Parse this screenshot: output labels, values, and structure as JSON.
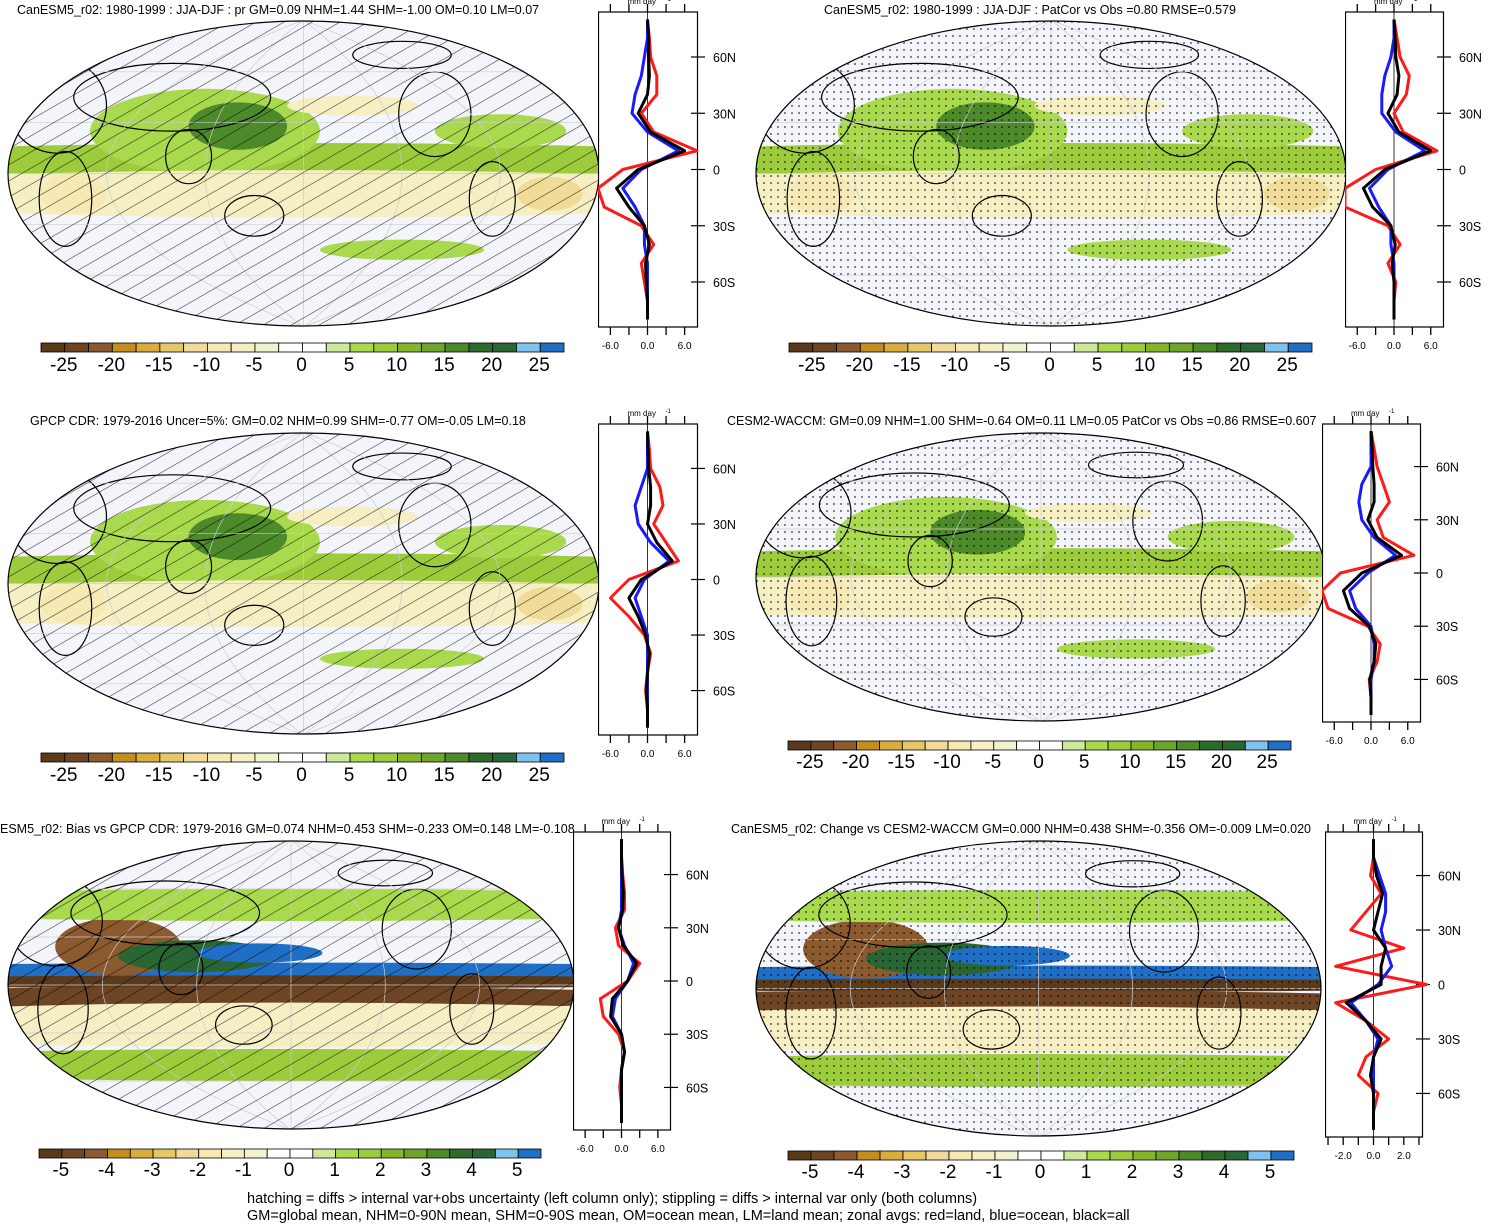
{
  "footer": {
    "line1": "hatching = diffs > internal var+obs uncertainty (left column only); stippling = diffs > internal var only (both columns)",
    "line2": "GM=global mean, NHM=0-90N mean, SHM=0-90S mean, OM=ocean mean, LM=land mean; zonal avgs: red=land, blue=ocean, black=all"
  },
  "colors": {
    "land": "#ff1a1a",
    "ocean": "#1a1aff",
    "all": "#000000",
    "palette": [
      "#5b3a1c",
      "#6e4524",
      "#8c5a2f",
      "#c48e1e",
      "#d9ac3e",
      "#e5c766",
      "#f0dc98",
      "#f6e9b4",
      "#f7efc4",
      "#f1f2cf",
      "#ffffff",
      "#ffffff",
      "#cfe99a",
      "#a9d94d",
      "#9ccb3c",
      "#85b52b",
      "#6fa42a",
      "#4c8a2a",
      "#2c6b2c",
      "#2a6634",
      "#7ec3ee",
      "#1f6fc6"
    ]
  },
  "chart_data": [
    {
      "type": "map+line",
      "id": "p1",
      "title": "CanESM5_r02: 1980-1999 : JJA-DJF : pr GM=0.09 NHM=1.44 SHM=-1.00 OM=0.10 LM=0.07",
      "units": "mm day-1",
      "overlay": "hatch",
      "colorbar_labels": [
        "-25",
        "-20",
        "-15",
        "-10",
        "-5",
        "0",
        "5",
        "10",
        "15",
        "20",
        "25"
      ],
      "xticks": [
        "-6.0",
        "0.0",
        "6.0"
      ],
      "xlim": [
        -8,
        8
      ],
      "lat_labels": [
        "60N",
        "30N",
        "0",
        "30S",
        "60S"
      ],
      "lat": [
        -80,
        -70,
        -60,
        -50,
        -40,
        -30,
        -20,
        -10,
        0,
        10,
        20,
        30,
        40,
        50,
        60,
        70,
        80
      ],
      "land": [
        0,
        0,
        -0.5,
        -1,
        1,
        -1,
        -7,
        -8,
        -4,
        8,
        1,
        -1,
        1.5,
        1.5,
        0.5,
        0.3,
        0
      ],
      "ocean": [
        0,
        0,
        0,
        0,
        -0.5,
        -0.5,
        -2,
        -4,
        -1,
        5,
        0,
        -2.5,
        -2,
        -1,
        -0.5,
        0,
        0
      ],
      "all": [
        0,
        0,
        -0.2,
        -0.3,
        0.3,
        -0.5,
        -3,
        -5,
        -1.5,
        6,
        0.5,
        -1.5,
        0,
        0.3,
        0.2,
        0.2,
        0
      ]
    },
    {
      "type": "map+line",
      "id": "p2",
      "title": "CanESM5_r02: 1980-1999 : JJA-DJF : PatCor vs Obs =0.80 RMSE=0.579",
      "units": "mm day-1",
      "overlay": "stipple",
      "colorbar_labels": [
        "-25",
        "-20",
        "-15",
        "-10",
        "-5",
        "0",
        "5",
        "10",
        "15",
        "20",
        "25"
      ],
      "xticks": [
        "-6.0",
        "0.0",
        "6.0"
      ],
      "xlim": [
        -8,
        8
      ],
      "lat_labels": [
        "60N",
        "30N",
        "0",
        "30S",
        "60S"
      ],
      "lat": [
        -80,
        -70,
        -60,
        -50,
        -40,
        -30,
        -20,
        -10,
        0,
        10,
        20,
        30,
        40,
        50,
        60,
        70,
        80
      ],
      "land": [
        0,
        0,
        0.3,
        -1,
        1,
        -1,
        -8,
        -8,
        -3,
        7,
        1.5,
        0,
        2,
        2.5,
        1,
        0.5,
        0
      ],
      "ocean": [
        0,
        0,
        0,
        0,
        -0.5,
        -0.5,
        -2.5,
        -4,
        -1,
        5,
        0.3,
        -2,
        -2,
        -1.5,
        -0.5,
        0,
        0
      ],
      "all": [
        0,
        0,
        0,
        -0.3,
        0.2,
        -0.5,
        -3.5,
        -5,
        -1.5,
        6,
        0.8,
        -1,
        0.5,
        0.8,
        0.3,
        0.2,
        0
      ]
    },
    {
      "type": "map+line",
      "id": "p3",
      "title": "GPCP CDR: 1979-2016 Uncer=5%: GM=0.02 NHM=0.99 SHM=-0.77 OM=-0.05 LM=0.18",
      "units": "mm day-1",
      "overlay": "hatch",
      "colorbar_labels": [
        "-25",
        "-20",
        "-15",
        "-10",
        "-5",
        "0",
        "5",
        "10",
        "15",
        "20",
        "25"
      ],
      "xticks": [
        "-6.0",
        "0.0",
        "6.0"
      ],
      "xlim": [
        -8,
        8
      ],
      "lat_labels": [
        "60N",
        "30N",
        "0",
        "30S",
        "60S"
      ],
      "lat": [
        -80,
        -70,
        -60,
        -50,
        -40,
        -30,
        -20,
        -10,
        0,
        10,
        20,
        30,
        40,
        50,
        60,
        70,
        80
      ],
      "land": [
        0,
        0,
        -0.3,
        0,
        0.5,
        -0.5,
        -3,
        -6,
        -3,
        5,
        3,
        1,
        2.5,
        2,
        0.5,
        0.3,
        0
      ],
      "ocean": [
        0,
        0,
        0,
        0,
        0,
        0,
        -1,
        -2,
        -0.5,
        3.5,
        0.5,
        -1.5,
        -2,
        -1,
        0,
        0,
        0
      ],
      "all": [
        0,
        0,
        -0.2,
        0,
        0.3,
        -0.3,
        -1.5,
        -3,
        -1,
        4,
        1.5,
        0,
        0.5,
        0.5,
        0.2,
        0.1,
        0
      ]
    },
    {
      "type": "map+line",
      "id": "p4",
      "title": "CESM2-WACCM: GM=0.09 NHM=1.00 SHM=-0.64 OM=0.11 LM=0.05 PatCor vs Obs =0.86 RMSE=0.607",
      "units": "mm day-1",
      "overlay": "stipple",
      "colorbar_labels": [
        "-25",
        "-20",
        "-15",
        "-10",
        "-5",
        "0",
        "5",
        "10",
        "15",
        "20",
        "25"
      ],
      "xticks": [
        "-6.0",
        "0.0",
        "6.0"
      ],
      "xlim": [
        -8,
        8
      ],
      "lat_labels": [
        "60N",
        "30N",
        "0",
        "30S",
        "60S"
      ],
      "lat": [
        -80,
        -70,
        -60,
        -50,
        -40,
        -30,
        -20,
        -10,
        0,
        10,
        20,
        30,
        40,
        50,
        60,
        70,
        80
      ],
      "land": [
        0,
        0,
        -0.3,
        1,
        1.5,
        -0.5,
        -7,
        -8,
        -5,
        7,
        2,
        1,
        3,
        2,
        1,
        0.5,
        0
      ],
      "ocean": [
        0,
        0,
        0,
        0.5,
        0.5,
        0,
        -2.5,
        -3.5,
        -0.5,
        4,
        0.5,
        -1.5,
        -2,
        -1.5,
        0,
        0,
        0
      ],
      "all": [
        0,
        0,
        -0.2,
        0.5,
        0.8,
        -0.3,
        -3.5,
        -4.5,
        -1.5,
        5,
        1,
        -0.5,
        0.5,
        0.5,
        0.3,
        0.2,
        0
      ]
    },
    {
      "type": "map+line",
      "id": "p5",
      "title": "ESM5_r02: Bias vs GPCP CDR: 1979-2016 GM=0.074 NHM=0.453 SHM=-0.233 OM=0.148 LM=-0.108",
      "units": "mm day-1",
      "overlay": "hatch",
      "colorbar_labels": [
        "-5",
        "-4",
        "-3",
        "-2",
        "-1",
        "0",
        "1",
        "2",
        "3",
        "4",
        "5"
      ],
      "xticks": [
        "-6.0",
        "0.0",
        "6.0"
      ],
      "xlim": [
        -8,
        8
      ],
      "lat_labels": [
        "60N",
        "30N",
        "0",
        "30S",
        "60S"
      ],
      "lat": [
        -80,
        -70,
        -60,
        -50,
        -40,
        -30,
        -20,
        -10,
        0,
        10,
        20,
        30,
        40,
        50,
        60,
        70,
        80
      ],
      "land": [
        0,
        0,
        -0.3,
        0,
        0.5,
        -0.5,
        -3,
        -3.5,
        1,
        3,
        -0.5,
        -1,
        0.5,
        0.5,
        0.2,
        0,
        0
      ],
      "ocean": [
        0,
        0,
        0,
        0,
        0.5,
        0,
        -1.5,
        -1,
        1,
        2,
        0.5,
        -0.5,
        0,
        0,
        0,
        0,
        0
      ],
      "all": [
        0,
        0,
        0,
        0,
        0.5,
        0,
        -1.8,
        -1.5,
        1,
        2.5,
        0.3,
        -0.5,
        0.2,
        0.3,
        0.1,
        0,
        0
      ]
    },
    {
      "type": "map+line",
      "id": "p6",
      "title": "CanESM5_r02: Change vs CESM2-WACCM GM=0.000 NHM=0.438 SHM=-0.356 OM=-0.009 LM=0.020",
      "units": "mm day-1",
      "overlay": "stipple",
      "colorbar_labels": [
        "-5",
        "-4",
        "-3",
        "-2",
        "-1",
        "0",
        "1",
        "2",
        "3",
        "4",
        "5"
      ],
      "xticks": [
        "-2.0",
        "0.0",
        "2.0"
      ],
      "xlim": [
        -3.2,
        3.2
      ],
      "lat_labels": [
        "60N",
        "30N",
        "0",
        "30S",
        "60S"
      ],
      "lat": [
        -80,
        -70,
        -60,
        -50,
        -40,
        -30,
        -20,
        -10,
        0,
        10,
        20,
        30,
        40,
        50,
        60,
        70,
        80
      ],
      "land": [
        0,
        0,
        0.3,
        -1,
        -0.5,
        1,
        -0.5,
        -2.5,
        3.5,
        -2.5,
        2,
        -1.5,
        -0.5,
        0.5,
        -0.2,
        0,
        0
      ],
      "ocean": [
        0,
        0,
        0,
        0,
        0,
        0.3,
        -0.5,
        -1.5,
        0.3,
        1.2,
        0.8,
        0.5,
        0.8,
        0.8,
        0.4,
        0,
        0
      ],
      "all": [
        0,
        0,
        0,
        -0.2,
        0,
        0.5,
        -0.5,
        -1.8,
        0.5,
        0.5,
        0.8,
        0,
        0.3,
        0.6,
        0.2,
        0,
        0
      ]
    }
  ]
}
